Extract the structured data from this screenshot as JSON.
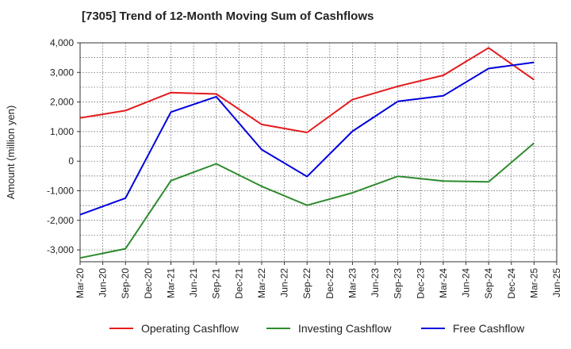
{
  "chart_data": {
    "type": "line",
    "title": "[7305]  Trend of 12-Month Moving Sum of Cashflows",
    "ylabel": "Amount (million yen)",
    "xlabel": "",
    "ylim": [
      -3400,
      4000
    ],
    "yticks": [
      4000,
      3000,
      2000,
      1000,
      0,
      -1000,
      -2000,
      -3000
    ],
    "ytick_labels": [
      "4,000",
      "3,000",
      "2,000",
      "1,000",
      "0",
      "-1,000",
      "-2,000",
      "-3,000"
    ],
    "categories": [
      "Mar-20",
      "Jun-20",
      "Sep-20",
      "Dec-20",
      "Mar-21",
      "Jun-21",
      "Sep-21",
      "Dec-21",
      "Mar-22",
      "Jun-22",
      "Sep-22",
      "Dec-22",
      "Mar-23",
      "Jun-23",
      "Sep-23",
      "Dec-23",
      "Mar-24",
      "Jun-24",
      "Sep-24",
      "Dec-24",
      "Mar-25",
      "Jun-25"
    ],
    "grid": true,
    "legend_position": "bottom",
    "series": [
      {
        "name": "Operating Cashflow",
        "color": "#e41a1c",
        "points": [
          [
            "Mar-20",
            1460
          ],
          [
            "Sep-20",
            1710
          ],
          [
            "Mar-21",
            2320
          ],
          [
            "Sep-21",
            2270
          ],
          [
            "Mar-22",
            1240
          ],
          [
            "Sep-22",
            970
          ],
          [
            "Mar-23",
            2080
          ],
          [
            "Sep-23",
            2530
          ],
          [
            "Mar-24",
            2900
          ],
          [
            "Sep-24",
            3830
          ],
          [
            "Mar-25",
            2750
          ]
        ]
      },
      {
        "name": "Investing Cashflow",
        "color": "#2e8b2e",
        "points": [
          [
            "Mar-20",
            -3270
          ],
          [
            "Sep-20",
            -2960
          ],
          [
            "Mar-21",
            -660
          ],
          [
            "Sep-21",
            -90
          ],
          [
            "Mar-22",
            -850
          ],
          [
            "Sep-22",
            -1490
          ],
          [
            "Mar-23",
            -1070
          ],
          [
            "Sep-23",
            -510
          ],
          [
            "Mar-24",
            -670
          ],
          [
            "Sep-24",
            -700
          ],
          [
            "Mar-25",
            610
          ]
        ]
      },
      {
        "name": "Free Cashflow",
        "color": "#0000dd",
        "points": [
          [
            "Mar-20",
            -1810
          ],
          [
            "Sep-20",
            -1250
          ],
          [
            "Mar-21",
            1660
          ],
          [
            "Sep-21",
            2180
          ],
          [
            "Mar-22",
            390
          ],
          [
            "Sep-22",
            -520
          ],
          [
            "Mar-23",
            1010
          ],
          [
            "Sep-23",
            2020
          ],
          [
            "Mar-24",
            2210
          ],
          [
            "Sep-24",
            3130
          ],
          [
            "Mar-25",
            3340
          ]
        ]
      }
    ]
  }
}
